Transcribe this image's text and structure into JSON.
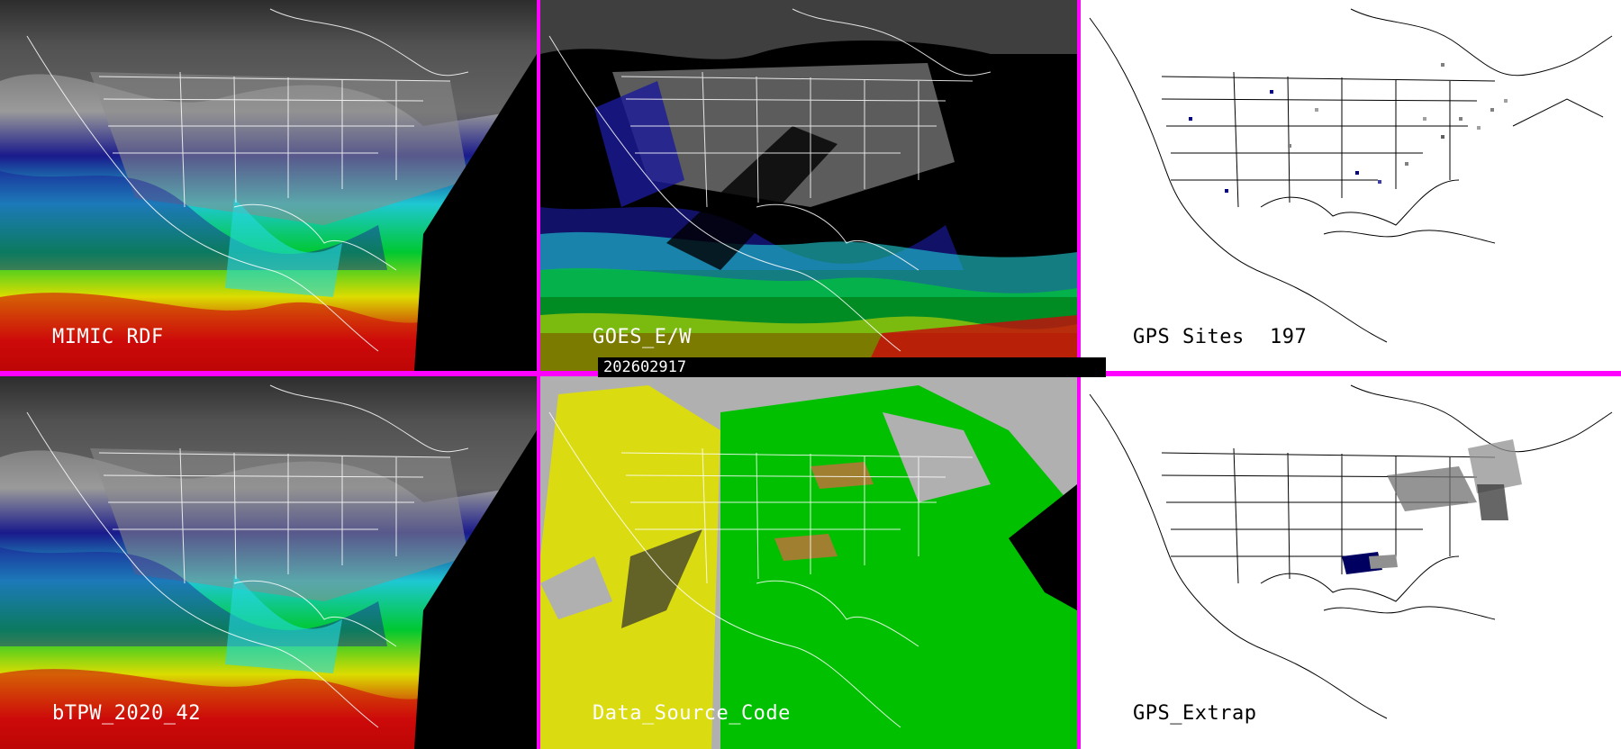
{
  "panels": [
    {
      "id": "mimic",
      "label": "MIMIC RDF",
      "style": "tpw"
    },
    {
      "id": "goes",
      "label": "GOES_E/W",
      "style": "goes"
    },
    {
      "id": "gps-sites",
      "label": "GPS Sites",
      "count": "197",
      "style": "gps"
    },
    {
      "id": "btpw",
      "label": "bTPW_2020_42",
      "style": "tpw"
    },
    {
      "id": "source",
      "label": "Data_Source_Code",
      "style": "source"
    },
    {
      "id": "gps-extrap",
      "label": "GPS_Extrap",
      "style": "extrap"
    }
  ],
  "timestamp": "202602917",
  "colors": {
    "divider": "#ff00ff",
    "tpw_scale": [
      "#c80000",
      "#e6e600",
      "#00c800",
      "#00e6e6",
      "#0000a0",
      "#808080",
      "#ffffff"
    ],
    "source_codes": [
      "#e0e000",
      "#00c000",
      "#b0b0b0",
      "#000000",
      "#a08030"
    ]
  }
}
